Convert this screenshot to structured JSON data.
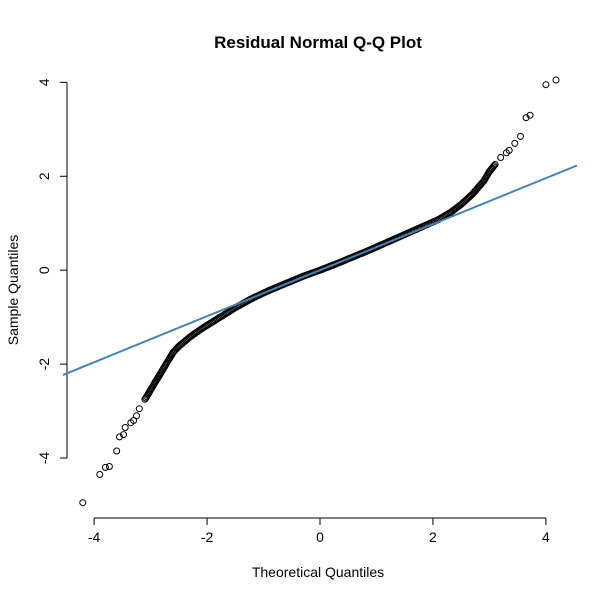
{
  "chart_data": {
    "type": "scatter",
    "title": "Residual Normal Q-Q Plot",
    "xlabel": "Theoretical Quantiles",
    "ylabel": "Sample Quantiles",
    "xlim": [
      -4.25,
      4.25
    ],
    "ylim": [
      -5.0,
      4.05
    ],
    "x_ticks": [
      -4,
      -2,
      0,
      2,
      4
    ],
    "y_ticks": [
      -4,
      -2,
      0,
      2,
      4
    ],
    "x_tick_labels": [
      "-4",
      "-2",
      "0",
      "2",
      "4"
    ],
    "y_tick_labels": [
      "-4",
      "-2",
      "0",
      "2",
      "4"
    ],
    "grid": false,
    "point_color": "#000000",
    "reference_line": {
      "intercept": 0.0,
      "slope": 0.49,
      "color": "#4682B4"
    },
    "series": [
      {
        "points_tail": [
          [
            -4.2,
            -4.95
          ],
          [
            -3.9,
            -4.35
          ],
          [
            -3.8,
            -4.2
          ],
          [
            -3.73,
            -4.18
          ],
          [
            -3.6,
            -3.85
          ],
          [
            -3.55,
            -3.55
          ],
          [
            -3.48,
            -3.5
          ],
          [
            -3.45,
            -3.35
          ],
          [
            -3.35,
            -3.25
          ],
          [
            -3.3,
            -3.2
          ],
          [
            -3.25,
            -3.1
          ],
          [
            -3.2,
            -2.95
          ],
          [
            3.2,
            2.4
          ],
          [
            3.3,
            2.5
          ],
          [
            3.35,
            2.55
          ],
          [
            3.45,
            2.7
          ],
          [
            3.55,
            2.85
          ],
          [
            3.65,
            3.25
          ],
          [
            3.72,
            3.3
          ],
          [
            4.0,
            3.95
          ],
          [
            4.18,
            4.05
          ]
        ],
        "body_curve": [
          [
            -3.1,
            -2.75
          ],
          [
            -3.0,
            -2.55
          ],
          [
            -2.9,
            -2.35
          ],
          [
            -2.8,
            -2.15
          ],
          [
            -2.7,
            -1.95
          ],
          [
            -2.6,
            -1.75
          ],
          [
            -2.5,
            -1.62
          ],
          [
            -2.3,
            -1.42
          ],
          [
            -2.1,
            -1.25
          ],
          [
            -1.9,
            -1.1
          ],
          [
            -1.7,
            -0.95
          ],
          [
            -1.5,
            -0.8
          ],
          [
            -1.2,
            -0.6
          ],
          [
            -0.9,
            -0.43
          ],
          [
            -0.6,
            -0.28
          ],
          [
            -0.3,
            -0.13
          ],
          [
            0.0,
            0.0
          ],
          [
            0.3,
            0.14
          ],
          [
            0.6,
            0.29
          ],
          [
            0.9,
            0.44
          ],
          [
            1.2,
            0.6
          ],
          [
            1.5,
            0.76
          ],
          [
            1.8,
            0.92
          ],
          [
            2.1,
            1.08
          ],
          [
            2.3,
            1.22
          ],
          [
            2.5,
            1.4
          ],
          [
            2.7,
            1.62
          ],
          [
            2.9,
            1.9
          ],
          [
            3.0,
            2.1
          ],
          [
            3.1,
            2.25
          ]
        ]
      }
    ]
  }
}
